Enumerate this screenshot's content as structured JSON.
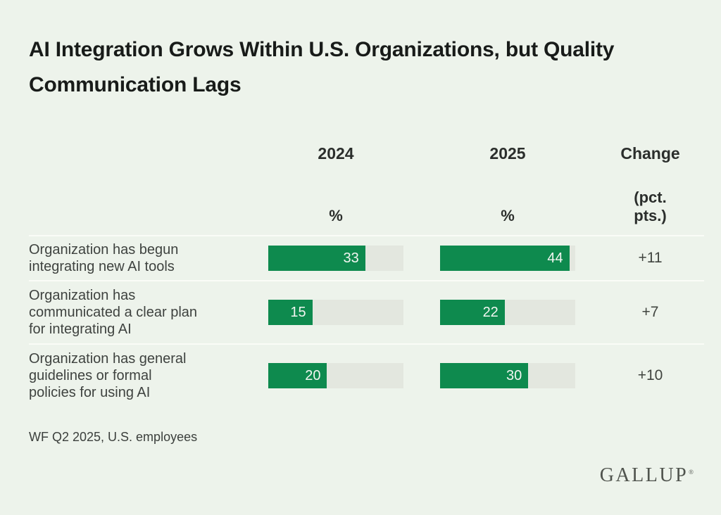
{
  "title": "AI Integration Grows Within U.S. Organizations, but Quality Communication Lags",
  "header": {
    "col_2024": {
      "label": "2024",
      "unit": "%"
    },
    "col_2025": {
      "label": "2025",
      "unit": "%"
    },
    "col_change": {
      "label": "Change",
      "unit": "(pct.\npts.)"
    }
  },
  "chart_data": {
    "type": "bar",
    "orientation": "horizontal",
    "categories": [
      "Organization has begun integrating new AI tools",
      "Organization has communicated a clear plan for integrating AI",
      "Organization has general guidelines or formal policies for using AI"
    ],
    "series": [
      {
        "name": "2024",
        "values": [
          33,
          15,
          20
        ]
      },
      {
        "name": "2025",
        "values": [
          44,
          22,
          30
        ]
      }
    ],
    "change_pct_pts": [
      "+11",
      "+7",
      "+10"
    ],
    "unit": "%",
    "bar_scale_max": 46,
    "layout": {
      "grid": false,
      "legend": "none",
      "value_labels": "inside-right"
    }
  },
  "rows": [
    {
      "label_display": "Organization has begun\nintegrating new AI tools",
      "v2024": "33",
      "v2025": "44",
      "change": "+11"
    },
    {
      "label_display": "Organization has\ncommunicated a clear plan\nfor integrating AI",
      "v2024": "15",
      "v2025": "22",
      "change": "+7"
    },
    {
      "label_display": "Organization has general\nguidelines or formal\npolicies for using AI",
      "v2024": "20",
      "v2025": "30",
      "change": "+10"
    }
  ],
  "footnote": "WF Q2 2025, U.S. employees",
  "brand": {
    "wordmark": "GALLUP",
    "registered": "®"
  },
  "colors": {
    "background": "#edf3eb",
    "bar_green": "#0e8a4e",
    "bar_track": "#e3e7df",
    "separator": "#fafcf7",
    "title_text": "#181b19",
    "body_text": "#3e423f"
  }
}
